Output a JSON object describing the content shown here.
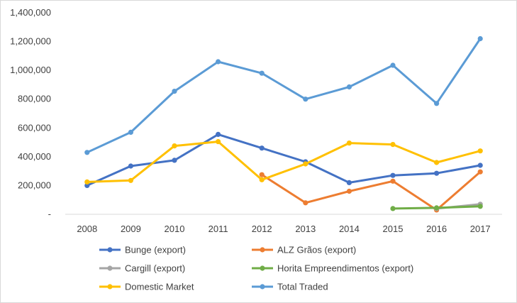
{
  "chart_data": {
    "type": "line",
    "title": "",
    "xlabel": "",
    "ylabel": "",
    "categories": [
      "2008",
      "2009",
      "2010",
      "2011",
      "2012",
      "2013",
      "2014",
      "2015",
      "2016",
      "2017"
    ],
    "ylim": [
      0,
      1400000
    ],
    "y_ticks": [
      0,
      200000,
      400000,
      600000,
      800000,
      1000000,
      1200000,
      1400000
    ],
    "y_tick_labels": [
      "-",
      "200,000",
      "400,000",
      "600,000",
      "800,000",
      "1,000,000",
      "1,200,000",
      "1,400,000"
    ],
    "grid": false,
    "legend_position": "bottom",
    "series": [
      {
        "name": "Bunge (export)",
        "color": "#4472c4",
        "values": [
          200000,
          335000,
          375000,
          555000,
          460000,
          365000,
          220000,
          270000,
          285000,
          340000
        ]
      },
      {
        "name": "ALZ Grãos (export)",
        "color": "#ed7d31",
        "values": [
          null,
          null,
          null,
          null,
          275000,
          80000,
          160000,
          230000,
          30000,
          295000
        ]
      },
      {
        "name": "Cargill (export)",
        "color": "#a5a5a5",
        "values": [
          null,
          null,
          null,
          null,
          null,
          null,
          null,
          null,
          40000,
          70000
        ]
      },
      {
        "name": "Horita Empreendimentos (export)",
        "color": "#70ad47",
        "values": [
          null,
          null,
          null,
          null,
          null,
          null,
          null,
          40000,
          45000,
          55000
        ]
      },
      {
        "name": "Domestic Market",
        "color": "#ffc000",
        "values": [
          225000,
          235000,
          475000,
          505000,
          240000,
          350000,
          495000,
          485000,
          360000,
          440000
        ]
      },
      {
        "name": "Total Traded",
        "color": "#5b9bd5",
        "values": [
          430000,
          570000,
          855000,
          1060000,
          980000,
          800000,
          885000,
          1035000,
          770000,
          1220000
        ]
      }
    ]
  }
}
